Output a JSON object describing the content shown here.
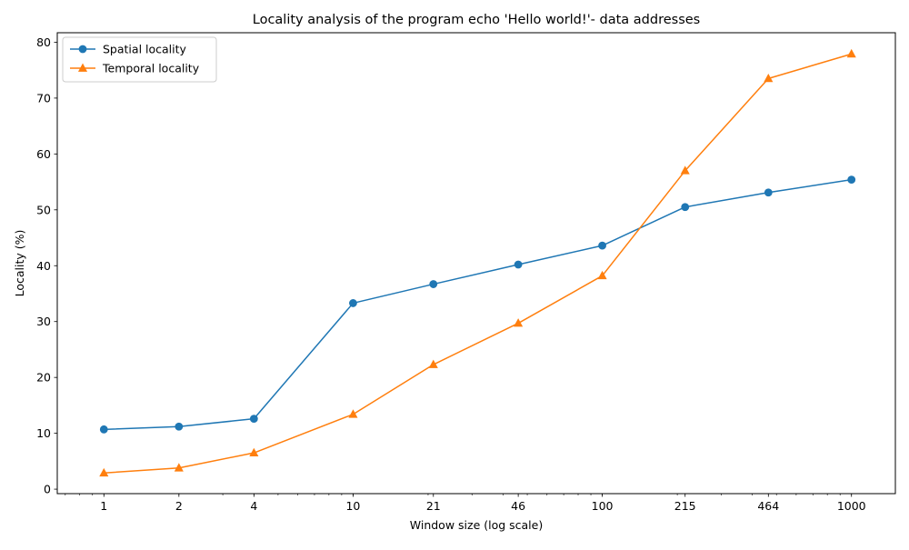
{
  "chart_data": {
    "type": "line",
    "title": "Locality analysis of the program echo 'Hello world!'- data addresses",
    "xlabel": "Window size (log scale)",
    "ylabel": "Locality (%)",
    "xscale": "log",
    "x": [
      1,
      2,
      4,
      10,
      21,
      46,
      100,
      215,
      464,
      1000
    ],
    "xticks": [
      1,
      2,
      4,
      10,
      21,
      46,
      100,
      215,
      464,
      1000
    ],
    "xtick_labels": [
      "1",
      "2",
      "4",
      "10",
      "21",
      "46",
      "100",
      "215",
      "464",
      "1000"
    ],
    "xlim": [
      0.65,
      1500
    ],
    "yticks": [
      0,
      10,
      20,
      30,
      40,
      50,
      60,
      70,
      80
    ],
    "ylim": [
      -0.8,
      81.7
    ],
    "grid": false,
    "legend_position": "top-left",
    "series": [
      {
        "name": "Spatial locality",
        "color": "#1f77b4",
        "marker": "circle",
        "values": [
          10.7,
          11.2,
          12.6,
          33.3,
          36.7,
          40.2,
          43.6,
          50.5,
          53.1,
          55.4
        ]
      },
      {
        "name": "Temporal locality",
        "color": "#ff7f0e",
        "marker": "triangle",
        "values": [
          2.9,
          3.8,
          6.5,
          13.4,
          22.3,
          29.7,
          38.2,
          57.0,
          73.5,
          77.9
        ]
      }
    ]
  }
}
